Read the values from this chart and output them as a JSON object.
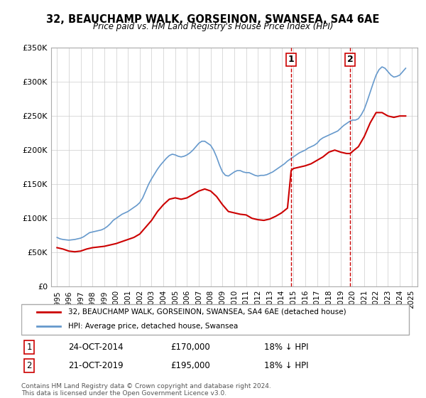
{
  "title": "32, BEAUCHAMP WALK, GORSEINON, SWANSEA, SA4 6AE",
  "subtitle": "Price paid vs. HM Land Registry's House Price Index (HPI)",
  "hpi_label": "HPI: Average price, detached house, Swansea",
  "price_label": "32, BEAUCHAMP WALK, GORSEINON, SWANSEA, SA4 6AE (detached house)",
  "footer": "Contains HM Land Registry data © Crown copyright and database right 2024.\nThis data is licensed under the Open Government Licence v3.0.",
  "marker1": {
    "date": "24-OCT-2014",
    "price": "£170,000",
    "hpi_diff": "18% ↓ HPI",
    "x": 2014.81
  },
  "marker2": {
    "date": "21-OCT-2019",
    "price": "£195,000",
    "hpi_diff": "18% ↓ HPI",
    "x": 2019.81
  },
  "ylim": [
    0,
    350000
  ],
  "xlim": [
    1994.5,
    2025.5
  ],
  "hpi_color": "#6699cc",
  "price_color": "#cc0000",
  "marker_line_color": "#cc0000",
  "background_color": "#ffffff",
  "grid_color": "#cccccc",
  "hpi_data": {
    "years": [
      1995.0,
      1995.25,
      1995.5,
      1995.75,
      1996.0,
      1996.25,
      1996.5,
      1996.75,
      1997.0,
      1997.25,
      1997.5,
      1997.75,
      1998.0,
      1998.25,
      1998.5,
      1998.75,
      1999.0,
      1999.25,
      1999.5,
      1999.75,
      2000.0,
      2000.25,
      2000.5,
      2000.75,
      2001.0,
      2001.25,
      2001.5,
      2001.75,
      2002.0,
      2002.25,
      2002.5,
      2002.75,
      2003.0,
      2003.25,
      2003.5,
      2003.75,
      2004.0,
      2004.25,
      2004.5,
      2004.75,
      2005.0,
      2005.25,
      2005.5,
      2005.75,
      2006.0,
      2006.25,
      2006.5,
      2006.75,
      2007.0,
      2007.25,
      2007.5,
      2007.75,
      2008.0,
      2008.25,
      2008.5,
      2008.75,
      2009.0,
      2009.25,
      2009.5,
      2009.75,
      2010.0,
      2010.25,
      2010.5,
      2010.75,
      2011.0,
      2011.25,
      2011.5,
      2011.75,
      2012.0,
      2012.25,
      2012.5,
      2012.75,
      2013.0,
      2013.25,
      2013.5,
      2013.75,
      2014.0,
      2014.25,
      2014.5,
      2014.75,
      2015.0,
      2015.25,
      2015.5,
      2015.75,
      2016.0,
      2016.25,
      2016.5,
      2016.75,
      2017.0,
      2017.25,
      2017.5,
      2017.75,
      2018.0,
      2018.25,
      2018.5,
      2018.75,
      2019.0,
      2019.25,
      2019.5,
      2019.75,
      2020.0,
      2020.25,
      2020.5,
      2020.75,
      2021.0,
      2021.25,
      2021.5,
      2021.75,
      2022.0,
      2022.25,
      2022.5,
      2022.75,
      2023.0,
      2023.25,
      2023.5,
      2023.75,
      2024.0,
      2024.25,
      2024.5
    ],
    "values": [
      72000,
      70000,
      69000,
      68500,
      68000,
      68500,
      69000,
      70000,
      71000,
      73000,
      76000,
      79000,
      80000,
      81000,
      82000,
      83000,
      85000,
      88000,
      92000,
      97000,
      100000,
      103000,
      106000,
      108000,
      110000,
      113000,
      116000,
      119000,
      123000,
      130000,
      140000,
      150000,
      158000,
      165000,
      172000,
      178000,
      183000,
      188000,
      192000,
      194000,
      193000,
      191000,
      190000,
      191000,
      193000,
      196000,
      200000,
      205000,
      210000,
      213000,
      213000,
      210000,
      207000,
      200000,
      190000,
      178000,
      168000,
      163000,
      162000,
      165000,
      168000,
      170000,
      170000,
      168000,
      167000,
      167000,
      165000,
      163000,
      162000,
      163000,
      163000,
      164000,
      166000,
      168000,
      171000,
      174000,
      177000,
      180000,
      184000,
      187000,
      190000,
      193000,
      196000,
      198000,
      200000,
      203000,
      205000,
      207000,
      210000,
      215000,
      218000,
      220000,
      222000,
      224000,
      226000,
      228000,
      232000,
      236000,
      239000,
      242000,
      244000,
      244000,
      246000,
      252000,
      260000,
      272000,
      285000,
      298000,
      310000,
      318000,
      322000,
      320000,
      315000,
      310000,
      307000,
      308000,
      310000,
      315000,
      320000
    ]
  },
  "price_data": {
    "years": [
      1995.0,
      1995.5,
      1996.0,
      1996.5,
      1997.0,
      1997.5,
      1998.0,
      1998.5,
      1999.0,
      1999.5,
      2000.0,
      2000.5,
      2001.0,
      2001.5,
      2002.0,
      2002.5,
      2003.0,
      2003.5,
      2004.0,
      2004.5,
      2005.0,
      2005.5,
      2006.0,
      2006.5,
      2007.0,
      2007.5,
      2008.0,
      2008.5,
      2009.0,
      2009.5,
      2010.0,
      2010.5,
      2011.0,
      2011.5,
      2012.0,
      2012.5,
      2013.0,
      2013.5,
      2014.0,
      2014.5,
      2014.81,
      2015.0,
      2015.5,
      2016.0,
      2016.5,
      2017.0,
      2017.5,
      2018.0,
      2018.5,
      2019.0,
      2019.5,
      2019.81,
      2020.0,
      2020.5,
      2021.0,
      2021.5,
      2022.0,
      2022.5,
      2023.0,
      2023.5,
      2024.0,
      2024.5
    ],
    "values": [
      57000,
      55000,
      52000,
      51000,
      52000,
      55000,
      57000,
      58000,
      59000,
      61000,
      63000,
      66000,
      69000,
      72000,
      77000,
      87000,
      97000,
      110000,
      120000,
      128000,
      130000,
      128000,
      130000,
      135000,
      140000,
      143000,
      140000,
      132000,
      120000,
      110000,
      108000,
      106000,
      105000,
      100000,
      98000,
      97000,
      99000,
      103000,
      108000,
      115000,
      170000,
      173000,
      175000,
      177000,
      180000,
      185000,
      190000,
      197000,
      200000,
      197000,
      195000,
      195000,
      198000,
      205000,
      220000,
      240000,
      255000,
      255000,
      250000,
      248000,
      250000,
      250000
    ]
  }
}
